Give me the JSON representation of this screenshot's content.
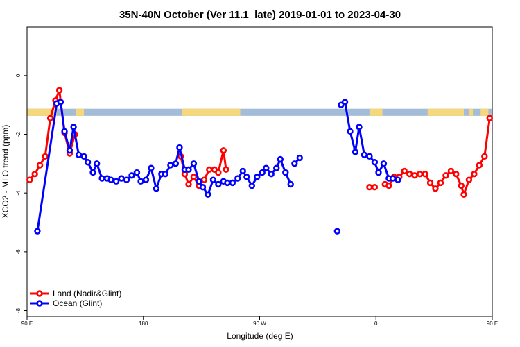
{
  "chart_data": {
    "type": "line",
    "title": "35N-40N October (Ver 11.1_late)   2019-01-01 to 2023-04-30",
    "xlabel": "Longitude (deg E)",
    "ylabel": "XCO2 - MLO trend (ppm)",
    "xlim": [
      90,
      450
    ],
    "ylim": [
      -8.2,
      1.65
    ],
    "x_ticks": [
      {
        "value": 90,
        "label": "90 E"
      },
      {
        "value": 180,
        "label": "180"
      },
      {
        "value": 270,
        "label": "90 W"
      },
      {
        "value": 360,
        "label": "0"
      },
      {
        "value": 450,
        "label": "90 E"
      }
    ],
    "y_ticks": [
      {
        "value": 0,
        "label": "0"
      },
      {
        "value": -2,
        "label": "-2"
      },
      {
        "value": -4,
        "label": "-4"
      },
      {
        "value": -6,
        "label": "-6"
      },
      {
        "value": -8,
        "label": "-8"
      }
    ],
    "legend_position": "bottom-left",
    "grid": false,
    "land_ocean_band": {
      "y_range": [
        -1.37,
        -1.13
      ],
      "land_color": "#f5d77c",
      "ocean_color": "#a3bdd9",
      "land_segments": [
        [
          90,
          113
        ],
        [
          128,
          134
        ],
        [
          210,
          255
        ],
        [
          355,
          365
        ],
        [
          400,
          428
        ],
        [
          432,
          435
        ],
        [
          441,
          447
        ]
      ]
    },
    "series": [
      {
        "name": "Land (Nadir&Glint)",
        "color": "#ff0000",
        "points": [
          [
            [
              92,
              -3.55
            ],
            [
              96,
              -3.35
            ],
            [
              100,
              -3.05
            ],
            [
              104,
              -2.75
            ],
            [
              108,
              -1.45
            ],
            [
              112,
              -0.85
            ],
            [
              115,
              -0.5
            ],
            [
              119,
              -1.95
            ],
            [
              123,
              -2.65
            ],
            [
              127,
              -2.0
            ]
          ],
          [
            [
              209,
              -2.75
            ],
            [
              212,
              -3.35
            ],
            [
              215,
              -3.7
            ],
            [
              219,
              -3.45
            ],
            [
              223,
              -3.75
            ],
            [
              227,
              -3.55
            ],
            [
              231,
              -3.2
            ],
            [
              235,
              -3.2
            ],
            [
              238,
              -3.3
            ],
            [
              242,
              -2.55
            ],
            [
              244,
              -3.2
            ]
          ],
          [
            [
              355,
              -3.8
            ],
            [
              359,
              -3.8
            ]
          ],
          [
            [
              367,
              -3.7
            ],
            [
              370,
              -3.75
            ],
            [
              374,
              -3.45
            ],
            [
              378,
              -3.45
            ],
            [
              382,
              -3.25
            ],
            [
              386,
              -3.35
            ],
            [
              390,
              -3.4
            ],
            [
              394,
              -3.35
            ],
            [
              398,
              -3.35
            ],
            [
              402,
              -3.65
            ],
            [
              406,
              -3.85
            ],
            [
              410,
              -3.65
            ],
            [
              414,
              -3.4
            ],
            [
              418,
              -3.25
            ],
            [
              422,
              -3.35
            ],
            [
              426,
              -3.75
            ],
            [
              428,
              -4.05
            ],
            [
              432,
              -3.55
            ],
            [
              436,
              -3.35
            ],
            [
              440,
              -3.05
            ],
            [
              444,
              -2.75
            ],
            [
              448,
              -1.45
            ]
          ]
        ]
      },
      {
        "name": "Ocean (Glint)",
        "color": "#0000ff",
        "points": [
          [
            [
              98,
              -5.3
            ],
            [
              113,
              -0.95
            ],
            [
              116,
              -0.9
            ],
            [
              119,
              -1.9
            ],
            [
              123,
              -2.55
            ],
            [
              126,
              -1.75
            ],
            [
              130,
              -2.7
            ],
            [
              134,
              -2.75
            ],
            [
              137,
              -2.95
            ],
            [
              141,
              -3.3
            ],
            [
              144,
              -3.0
            ],
            [
              148,
              -3.5
            ],
            [
              152,
              -3.5
            ],
            [
              155,
              -3.55
            ],
            [
              159,
              -3.6
            ],
            [
              163,
              -3.5
            ],
            [
              167,
              -3.55
            ],
            [
              171,
              -3.4
            ],
            [
              175,
              -3.3
            ],
            [
              178,
              -3.6
            ],
            [
              182,
              -3.55
            ],
            [
              186,
              -3.15
            ],
            [
              190,
              -3.85
            ],
            [
              194,
              -3.35
            ],
            [
              197,
              -3.35
            ],
            [
              201,
              -3.05
            ],
            [
              205,
              -3.0
            ],
            [
              208,
              -2.45
            ],
            [
              212,
              -3.2
            ],
            [
              215,
              -3.2
            ],
            [
              219,
              -3.0
            ],
            [
              223,
              -3.6
            ],
            [
              226,
              -3.8
            ],
            [
              230,
              -4.05
            ],
            [
              234,
              -3.55
            ],
            [
              238,
              -3.7
            ],
            [
              242,
              -3.6
            ],
            [
              245,
              -3.65
            ],
            [
              249,
              -3.65
            ],
            [
              253,
              -3.5
            ],
            [
              257,
              -3.25
            ],
            [
              260,
              -3.45
            ],
            [
              264,
              -3.75
            ],
            [
              268,
              -3.45
            ],
            [
              272,
              -3.3
            ],
            [
              275,
              -3.15
            ],
            [
              279,
              -3.35
            ],
            [
              283,
              -3.15
            ],
            [
              286,
              -2.85
            ],
            [
              290,
              -3.3
            ],
            [
              294,
              -3.7
            ]
          ],
          [
            [
              297,
              -3.0
            ],
            [
              301,
              -2.8
            ]
          ],
          [
            [
              330,
              -5.3
            ]
          ],
          [
            [
              333,
              -1.0
            ],
            [
              336,
              -0.9
            ],
            [
              340,
              -1.9
            ],
            [
              344,
              -2.6
            ],
            [
              347,
              -1.75
            ],
            [
              351,
              -2.7
            ],
            [
              355,
              -2.75
            ],
            [
              359,
              -2.95
            ],
            [
              362,
              -3.3
            ],
            [
              366,
              -3.0
            ],
            [
              370,
              -3.5
            ],
            [
              373,
              -3.5
            ],
            [
              377,
              -3.55
            ]
          ]
        ]
      }
    ]
  }
}
